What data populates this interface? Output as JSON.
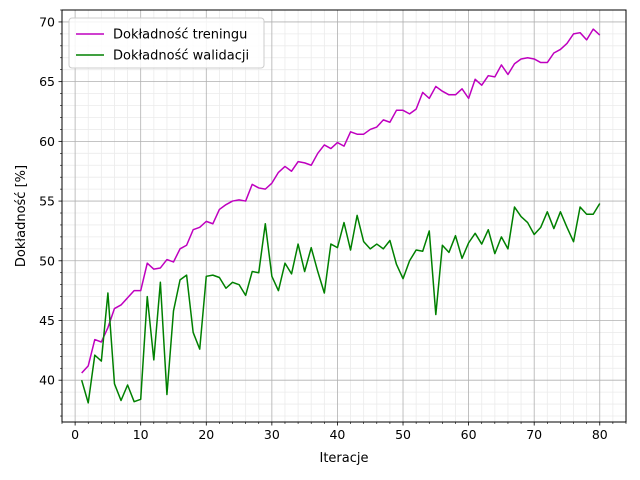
{
  "chart_data": {
    "type": "line",
    "title": "",
    "xlabel": "Iteracje",
    "ylabel": "Dokładność [%]",
    "xlim": [
      -2,
      84
    ],
    "ylim": [
      36.5,
      71
    ],
    "grid": "major and minor",
    "legend_position": "upper-left",
    "x_ticks": [
      0,
      10,
      20,
      30,
      40,
      50,
      60,
      70,
      80
    ],
    "y_ticks": [
      40,
      45,
      50,
      55,
      60,
      65,
      70
    ],
    "x": [
      1,
      2,
      3,
      4,
      5,
      6,
      7,
      8,
      9,
      10,
      11,
      12,
      13,
      14,
      15,
      16,
      17,
      18,
      19,
      20,
      21,
      22,
      23,
      24,
      25,
      26,
      27,
      28,
      29,
      30,
      31,
      32,
      33,
      34,
      35,
      36,
      37,
      38,
      39,
      40,
      41,
      42,
      43,
      44,
      45,
      46,
      47,
      48,
      49,
      50,
      51,
      52,
      53,
      54,
      55,
      56,
      57,
      58,
      59,
      60,
      61,
      62,
      63,
      64,
      65,
      66,
      67,
      68,
      69,
      70,
      71,
      72,
      73,
      74,
      75,
      76,
      77,
      78,
      79,
      80
    ],
    "series": [
      {
        "name": "Dokładność treningu",
        "color": "#bf00bf",
        "values": [
          40.6,
          41.2,
          43.4,
          43.2,
          44.4,
          46.0,
          46.3,
          46.9,
          47.5,
          47.5,
          49.8,
          49.3,
          49.4,
          50.1,
          49.9,
          51.0,
          51.3,
          52.6,
          52.8,
          53.3,
          53.1,
          54.3,
          54.7,
          55.0,
          55.1,
          55.0,
          56.4,
          56.1,
          56.0,
          56.5,
          57.4,
          57.9,
          57.5,
          58.3,
          58.2,
          58.0,
          59.0,
          59.7,
          59.4,
          59.9,
          59.6,
          60.8,
          60.6,
          60.6,
          61.0,
          61.2,
          61.8,
          61.6,
          62.6,
          62.6,
          62.3,
          62.7,
          64.1,
          63.6,
          64.6,
          64.2,
          63.9,
          63.9,
          64.4,
          63.6,
          65.2,
          64.7,
          65.5,
          65.4,
          66.4,
          65.6,
          66.5,
          66.9,
          67.0,
          66.9,
          66.6,
          66.6,
          67.4,
          67.7,
          68.2,
          69.0,
          69.1,
          68.5,
          69.4,
          68.9
        ]
      },
      {
        "name": "Dokładność walidacji",
        "color": "#008000",
        "values": [
          40.0,
          38.1,
          42.1,
          41.6,
          47.3,
          39.7,
          38.3,
          39.6,
          38.2,
          38.4,
          47.0,
          41.7,
          48.2,
          38.8,
          45.8,
          48.4,
          48.8,
          44.0,
          42.6,
          48.7,
          48.8,
          48.6,
          47.7,
          48.2,
          48.0,
          47.1,
          49.1,
          49.0,
          53.1,
          48.7,
          47.5,
          49.8,
          48.9,
          51.4,
          49.1,
          51.1,
          49.1,
          47.3,
          51.4,
          51.1,
          53.2,
          50.9,
          53.8,
          51.6,
          51.0,
          51.4,
          51.0,
          51.7,
          49.7,
          48.5,
          50.0,
          50.9,
          50.8,
          52.5,
          45.5,
          51.3,
          50.7,
          52.1,
          50.2,
          51.5,
          52.3,
          51.4,
          52.6,
          50.6,
          52.0,
          51.0,
          54.5,
          53.7,
          53.2,
          52.2,
          52.8,
          54.1,
          52.7,
          54.1,
          52.8,
          51.6,
          54.5,
          53.9,
          53.9,
          54.8
        ]
      }
    ]
  }
}
